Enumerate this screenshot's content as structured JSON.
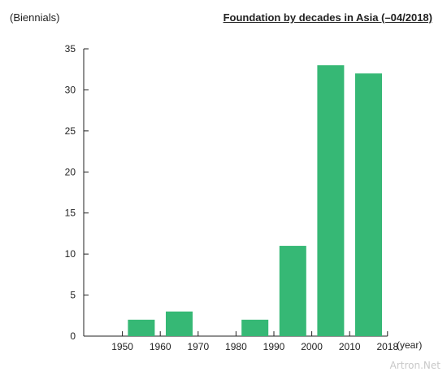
{
  "header": {
    "y_unit_label": "(Biennials)",
    "title": "Foundation by decades in Asia (–04/2018)"
  },
  "x_unit_label": "(year)",
  "watermark": "Artron.Net",
  "colors": {
    "bar": "#36b875",
    "axis": "#222222"
  },
  "chart_data": {
    "type": "bar",
    "title": "Foundation by decades in Asia (–04/2018)",
    "ylabel": "(Biennials)",
    "xlabel": "(year)",
    "ylim": [
      0,
      35
    ],
    "y_ticks": [
      0,
      5,
      10,
      15,
      20,
      25,
      30,
      35
    ],
    "x_tick_labels": [
      "1950",
      "1960",
      "1970",
      "1980",
      "1990",
      "2000",
      "2010",
      "2018"
    ],
    "categories": [
      "1940s",
      "1950s",
      "1960s",
      "1970s",
      "1980s",
      "1990s",
      "2000s",
      "2010–2018"
    ],
    "values": [
      0,
      2,
      3,
      0,
      2,
      11,
      33,
      32
    ],
    "grid": false,
    "legend": "none"
  }
}
